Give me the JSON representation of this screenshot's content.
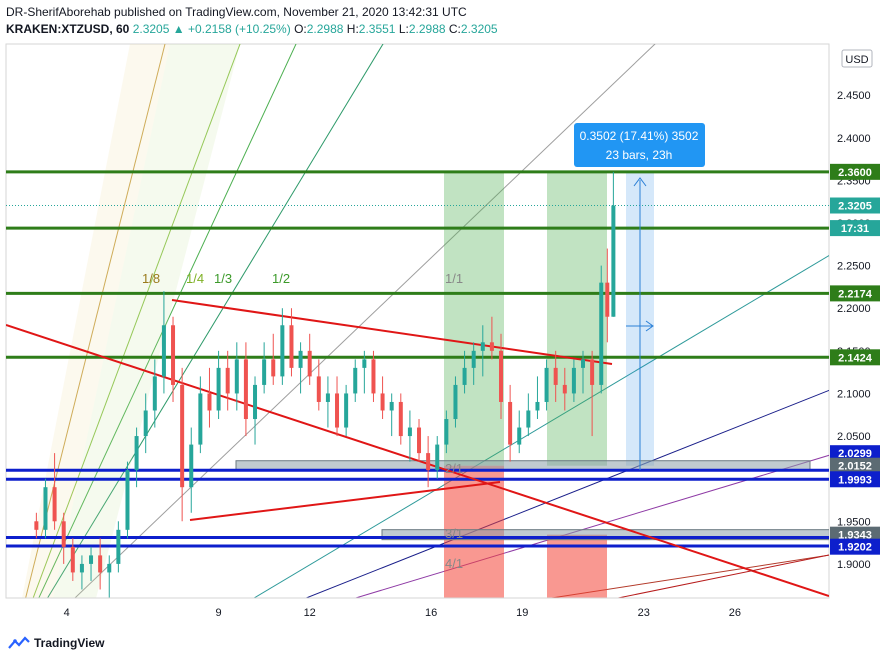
{
  "header": {
    "publisher_line": "DR-SherifAborehab published on TradingView.com, November 21, 2020 13:42:31 UTC",
    "symbol": "KRAKEN:XTZUSD, 60",
    "last": "2.3205",
    "change": "▲ +0.2158 (+10.25%)",
    "o_label": "O:",
    "o": "2.2988",
    "h_label": "H:",
    "h": "2.3551",
    "l_label": "L:",
    "l": "2.2988",
    "c_label": "C:",
    "c": "2.3205"
  },
  "footer": {
    "brand": "TradingView"
  },
  "colors": {
    "resistance_green": "#2e7d19",
    "support_blue": "#0d1fcc",
    "trend_red": "#e01616",
    "candle_up": "#26a69a",
    "candle_down": "#ef5350",
    "measure_blue": "#2a7fd6"
  },
  "chart_data": {
    "type": "candlestick",
    "currency_button": "USD",
    "y_ticks": [
      "2.4500",
      "2.4000",
      "2.3500",
      "2.3000",
      "2.2500",
      "2.2000",
      "2.1500",
      "2.1000",
      "2.0500",
      "2.0000",
      "1.9500",
      "1.9000"
    ],
    "ylim": [
      1.86,
      2.51
    ],
    "x_ticks": [
      {
        "label": "4",
        "day": 4
      },
      {
        "label": "9",
        "day": 9
      },
      {
        "label": "12",
        "day": 12
      },
      {
        "label": "16",
        "day": 16
      },
      {
        "label": "19",
        "day": 19
      },
      {
        "label": "23",
        "day": 23
      },
      {
        "label": "26",
        "day": 26
      }
    ],
    "xlim": [
      2.0,
      29.1
    ],
    "price_labels": [
      {
        "text": "2.3600",
        "value": 2.36,
        "kind": "resistance"
      },
      {
        "text": "2.3205",
        "value": 2.3205,
        "kind": "last"
      },
      {
        "text": "17:31",
        "value": 2.294,
        "kind": "countdown"
      },
      {
        "text": "2.2174",
        "value": 2.2174,
        "kind": "resistance"
      },
      {
        "text": "2.1424",
        "value": 2.1424,
        "kind": "resistance"
      },
      {
        "text": "2.0299",
        "value": 2.0299,
        "kind": "support"
      },
      {
        "text": "2.0152",
        "value": 2.0152,
        "kind": "support_gray"
      },
      {
        "text": "1.9993",
        "value": 1.9993,
        "kind": "support"
      },
      {
        "text": "1.9343",
        "value": 1.9343,
        "kind": "support_gray"
      },
      {
        "text": "1.9202",
        "value": 1.9202,
        "kind": "support"
      }
    ],
    "horizontal_levels": [
      {
        "value": 2.36,
        "color": "green"
      },
      {
        "value": 2.294,
        "color": "green"
      },
      {
        "value": 2.2174,
        "color": "green"
      },
      {
        "value": 2.1424,
        "color": "green"
      },
      {
        "value": 2.0099,
        "color": "blue"
      },
      {
        "value": 1.9993,
        "color": "blue"
      },
      {
        "value": 1.931,
        "color": "blue"
      },
      {
        "value": 1.921,
        "color": "blue"
      }
    ],
    "gann_fan_labels": [
      {
        "text": "1/8",
        "color": "#9a7b1c"
      },
      {
        "text": "1/4",
        "color": "#7fb125"
      },
      {
        "text": "1/3",
        "color": "#3c9a2a"
      },
      {
        "text": "1/2",
        "color": "#3c9a2a"
      },
      {
        "text": "1/1",
        "color": "#888888"
      },
      {
        "text": "2/1",
        "color": "#888888"
      },
      {
        "text": "3/1",
        "color": "#888888"
      },
      {
        "text": "4/1",
        "color": "#888888"
      }
    ],
    "measure_box": {
      "line1": "0.3502 (17.41%) 3502",
      "line2": "23 bars, 23h"
    },
    "candles": [
      [
        3.0,
        1.95,
        1.96,
        1.93,
        1.94
      ],
      [
        3.3,
        1.94,
        2.0,
        1.93,
        1.99
      ],
      [
        3.6,
        1.99,
        2.03,
        1.94,
        1.95
      ],
      [
        3.9,
        1.95,
        1.96,
        1.9,
        1.92
      ],
      [
        4.2,
        1.92,
        1.93,
        1.88,
        1.89
      ],
      [
        4.5,
        1.89,
        1.91,
        1.87,
        1.9
      ],
      [
        4.8,
        1.9,
        1.92,
        1.88,
        1.91
      ],
      [
        5.1,
        1.91,
        1.93,
        1.87,
        1.89
      ],
      [
        5.4,
        1.89,
        1.91,
        1.86,
        1.9
      ],
      [
        5.7,
        1.9,
        1.95,
        1.89,
        1.94
      ],
      [
        6.0,
        1.94,
        2.02,
        1.93,
        2.01
      ],
      [
        6.3,
        2.01,
        2.06,
        1.99,
        2.05
      ],
      [
        6.6,
        2.05,
        2.1,
        2.03,
        2.08
      ],
      [
        6.9,
        2.08,
        2.14,
        2.06,
        2.12
      ],
      [
        7.2,
        2.12,
        2.22,
        2.1,
        2.18
      ],
      [
        7.5,
        2.18,
        2.19,
        2.09,
        2.11
      ],
      [
        7.8,
        2.11,
        2.13,
        1.95,
        1.99
      ],
      [
        8.1,
        1.99,
        2.06,
        1.96,
        2.04
      ],
      [
        8.4,
        2.04,
        2.12,
        2.03,
        2.1
      ],
      [
        8.7,
        2.1,
        2.13,
        2.06,
        2.08
      ],
      [
        9.0,
        2.08,
        2.15,
        2.07,
        2.13
      ],
      [
        9.3,
        2.13,
        2.15,
        2.08,
        2.1
      ],
      [
        9.6,
        2.1,
        2.16,
        2.08,
        2.14
      ],
      [
        9.9,
        2.14,
        2.16,
        2.05,
        2.07
      ],
      [
        10.2,
        2.07,
        2.12,
        2.04,
        2.11
      ],
      [
        10.5,
        2.11,
        2.16,
        2.1,
        2.14
      ],
      [
        10.8,
        2.14,
        2.17,
        2.11,
        2.12
      ],
      [
        11.1,
        2.12,
        2.2,
        2.11,
        2.18
      ],
      [
        11.4,
        2.18,
        2.2,
        2.12,
        2.13
      ],
      [
        11.7,
        2.13,
        2.16,
        2.1,
        2.15
      ],
      [
        12.0,
        2.15,
        2.17,
        2.11,
        2.12
      ],
      [
        12.3,
        2.12,
        2.14,
        2.08,
        2.09
      ],
      [
        12.6,
        2.09,
        2.12,
        2.06,
        2.1
      ],
      [
        12.9,
        2.1,
        2.12,
        2.05,
        2.06
      ],
      [
        13.2,
        2.06,
        2.11,
        2.05,
        2.1
      ],
      [
        13.5,
        2.1,
        2.14,
        2.09,
        2.13
      ],
      [
        13.8,
        2.13,
        2.15,
        2.1,
        2.14
      ],
      [
        14.1,
        2.14,
        2.15,
        2.09,
        2.1
      ],
      [
        14.4,
        2.1,
        2.12,
        2.07,
        2.08
      ],
      [
        14.7,
        2.08,
        2.1,
        2.05,
        2.09
      ],
      [
        15.0,
        2.09,
        2.1,
        2.04,
        2.05
      ],
      [
        15.3,
        2.05,
        2.08,
        2.02,
        2.06
      ],
      [
        15.6,
        2.06,
        2.07,
        2.02,
        2.03
      ],
      [
        15.9,
        2.03,
        2.05,
        1.99,
        2.01
      ],
      [
        16.2,
        2.01,
        2.05,
        2.0,
        2.04
      ],
      [
        16.5,
        2.04,
        2.08,
        2.03,
        2.07
      ],
      [
        16.8,
        2.07,
        2.12,
        2.06,
        2.11
      ],
      [
        17.1,
        2.11,
        2.15,
        2.1,
        2.13
      ],
      [
        17.4,
        2.13,
        2.16,
        2.11,
        2.15
      ],
      [
        17.7,
        2.15,
        2.18,
        2.12,
        2.16
      ],
      [
        18.0,
        2.16,
        2.19,
        2.14,
        2.15
      ],
      [
        18.3,
        2.15,
        2.17,
        2.07,
        2.09
      ],
      [
        18.6,
        2.09,
        2.11,
        2.02,
        2.04
      ],
      [
        18.9,
        2.04,
        2.08,
        2.03,
        2.06
      ],
      [
        19.2,
        2.06,
        2.1,
        2.05,
        2.08
      ],
      [
        19.5,
        2.08,
        2.12,
        2.07,
        2.09
      ],
      [
        19.8,
        2.09,
        2.14,
        2.08,
        2.13
      ],
      [
        20.1,
        2.13,
        2.15,
        2.09,
        2.11
      ],
      [
        20.4,
        2.11,
        2.13,
        2.08,
        2.1
      ],
      [
        20.7,
        2.1,
        2.14,
        2.09,
        2.13
      ],
      [
        21.0,
        2.13,
        2.15,
        2.1,
        2.14
      ],
      [
        21.3,
        2.14,
        2.15,
        2.05,
        2.11
      ],
      [
        21.6,
        2.11,
        2.25,
        2.1,
        2.23
      ],
      [
        21.8,
        2.23,
        2.27,
        2.16,
        2.19
      ],
      [
        22.0,
        2.19,
        2.36,
        2.19,
        2.3205
      ]
    ]
  }
}
